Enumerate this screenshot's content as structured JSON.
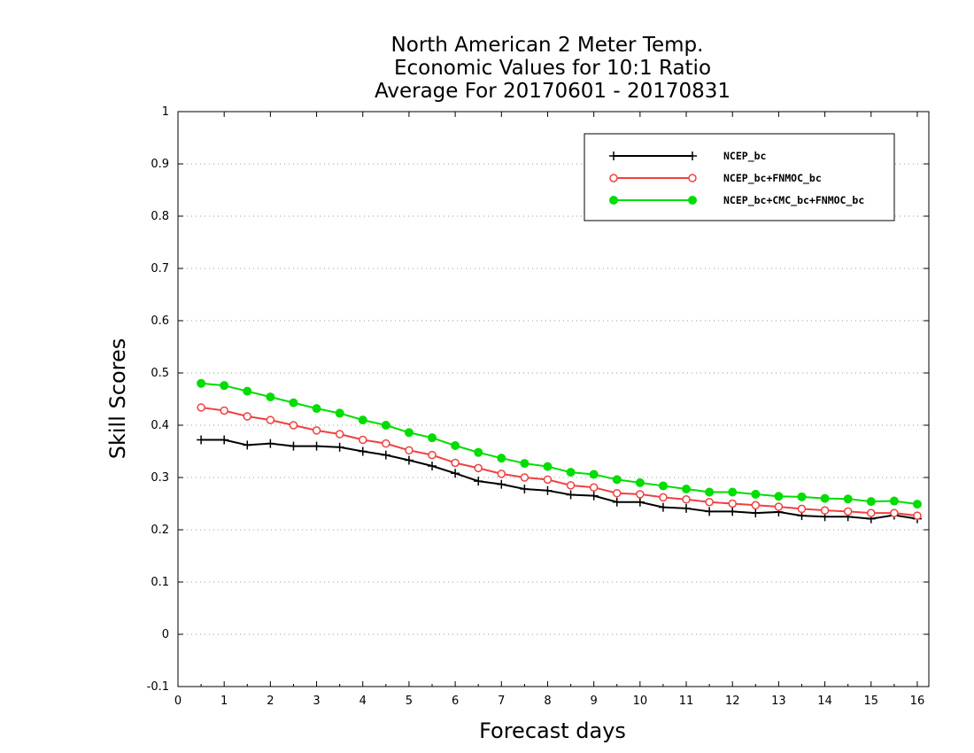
{
  "chart_data": {
    "type": "line",
    "title": [
      "North American 2 Meter Temp.",
      "Economic Values for 10:1 Ratio",
      "Average For 20170601 - 20170831"
    ],
    "xlabel": "Forecast days",
    "ylabel": "Skill Scores",
    "xlim": [
      0,
      16.25
    ],
    "ylim": [
      -0.1,
      1
    ],
    "xticks": [
      0,
      1,
      2,
      3,
      4,
      5,
      6,
      7,
      8,
      9,
      10,
      11,
      12,
      13,
      14,
      15,
      16
    ],
    "yticks": [
      -0.1,
      0,
      0.1,
      0.2,
      0.3,
      0.4,
      0.5,
      0.6,
      0.7,
      0.8,
      0.9,
      1
    ],
    "ytick_labels": [
      "-0.1",
      "0",
      "0.1",
      "0.2",
      "0.3",
      "0.4",
      "0.5",
      "0.6",
      "0.7",
      "0.8",
      "0.9",
      "1"
    ],
    "grid": "horizontal dotted",
    "legend_position": "top-right",
    "x": [
      0.5,
      1,
      1.5,
      2,
      2.5,
      3,
      3.5,
      4,
      4.5,
      5,
      5.5,
      6,
      6.5,
      7,
      7.5,
      8,
      8.5,
      9,
      9.5,
      10,
      10.5,
      11,
      11.5,
      12,
      12.5,
      13,
      13.5,
      14,
      14.5,
      15,
      15.5,
      16
    ],
    "series": [
      {
        "name": "NCEP_bc",
        "color": "#000000",
        "marker": "plus",
        "values": [
          0.372,
          0.372,
          0.362,
          0.365,
          0.36,
          0.36,
          0.358,
          0.35,
          0.343,
          0.333,
          0.322,
          0.308,
          0.293,
          0.287,
          0.278,
          0.275,
          0.267,
          0.265,
          0.253,
          0.253,
          0.243,
          0.241,
          0.235,
          0.235,
          0.232,
          0.234,
          0.227,
          0.225,
          0.225,
          0.221,
          0.228,
          0.221
        ]
      },
      {
        "name": "NCEP_bc+FNMOC_bc",
        "color": "#f04040",
        "marker": "open-circle",
        "values": [
          0.434,
          0.428,
          0.417,
          0.41,
          0.4,
          0.39,
          0.383,
          0.372,
          0.365,
          0.352,
          0.343,
          0.328,
          0.318,
          0.307,
          0.3,
          0.296,
          0.285,
          0.281,
          0.27,
          0.268,
          0.262,
          0.258,
          0.253,
          0.25,
          0.247,
          0.244,
          0.24,
          0.237,
          0.235,
          0.232,
          0.232,
          0.227
        ]
      },
      {
        "name": "NCEP_bc+CMC_bc+FNMOC_bc",
        "color": "#00dd00",
        "marker": "filled-circle",
        "values": [
          0.48,
          0.476,
          0.465,
          0.454,
          0.443,
          0.432,
          0.423,
          0.41,
          0.4,
          0.386,
          0.376,
          0.361,
          0.348,
          0.337,
          0.327,
          0.321,
          0.31,
          0.306,
          0.296,
          0.29,
          0.284,
          0.278,
          0.272,
          0.272,
          0.268,
          0.264,
          0.263,
          0.26,
          0.259,
          0.254,
          0.255,
          0.249
        ]
      }
    ]
  }
}
